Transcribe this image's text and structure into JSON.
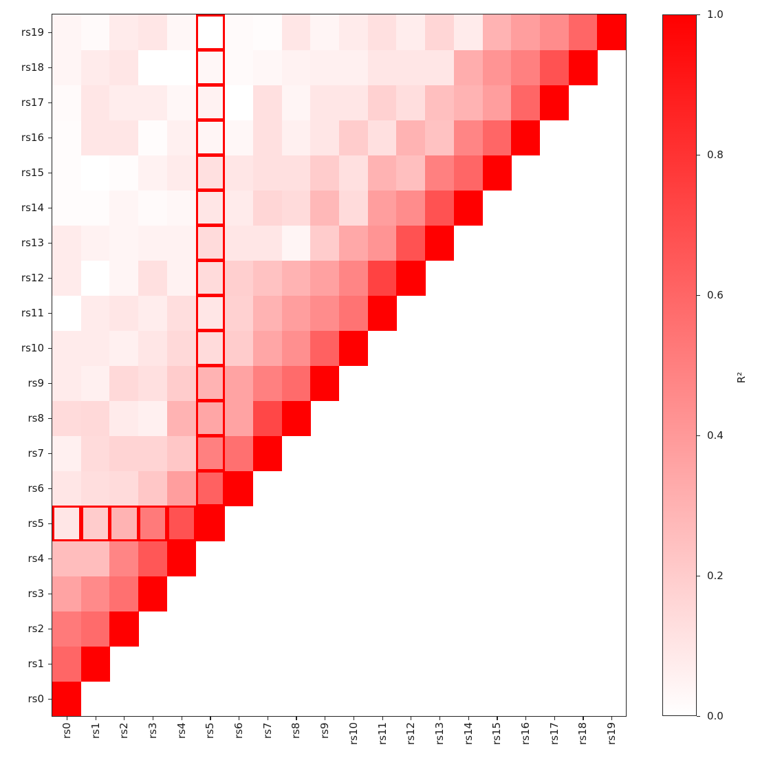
{
  "chart_data": {
    "type": "heatmap",
    "title": "",
    "xlabel": "",
    "ylabel": "",
    "x_categories": [
      "rs0",
      "rs1",
      "rs2",
      "rs3",
      "rs4",
      "rs5",
      "rs6",
      "rs7",
      "rs8",
      "rs9",
      "rs10",
      "rs11",
      "rs12",
      "rs13",
      "rs14",
      "rs15",
      "rs16",
      "rs17",
      "rs18",
      "rs19"
    ],
    "y_categories_bottom_to_top": [
      "rs0",
      "rs1",
      "rs2",
      "rs3",
      "rs4",
      "rs5",
      "rs6",
      "rs7",
      "rs8",
      "rs9",
      "rs10",
      "rs11",
      "rs12",
      "rs13",
      "rs14",
      "rs15",
      "rs16",
      "rs17",
      "rs18",
      "rs19"
    ],
    "matrix_lower_triangular": {
      "rs0": [
        1.0
      ],
      "rs1": [
        0.6,
        1.0
      ],
      "rs2": [
        0.52,
        0.58,
        1.0
      ],
      "rs3": [
        0.36,
        0.46,
        0.56,
        1.0
      ],
      "rs4": [
        0.26,
        0.26,
        0.48,
        0.66,
        1.0
      ],
      "rs5": [
        0.1,
        0.2,
        0.3,
        0.52,
        0.68,
        1.0
      ],
      "rs6": [
        0.1,
        0.13,
        0.14,
        0.22,
        0.38,
        0.62,
        1.0
      ],
      "rs7": [
        0.06,
        0.14,
        0.17,
        0.17,
        0.22,
        0.5,
        0.56,
        1.0
      ],
      "rs8": [
        0.14,
        0.15,
        0.08,
        0.06,
        0.3,
        0.35,
        0.36,
        0.72,
        1.0
      ],
      "rs9": [
        0.08,
        0.06,
        0.15,
        0.12,
        0.2,
        0.3,
        0.36,
        0.5,
        0.58,
        1.0
      ],
      "rs10": [
        0.08,
        0.08,
        0.06,
        0.1,
        0.15,
        0.14,
        0.2,
        0.35,
        0.44,
        0.62,
        1.0
      ],
      "rs11": [
        0.0,
        0.08,
        0.1,
        0.07,
        0.13,
        0.1,
        0.18,
        0.3,
        0.38,
        0.45,
        0.55,
        1.0
      ],
      "rs12": [
        0.08,
        0.0,
        0.04,
        0.12,
        0.05,
        0.14,
        0.19,
        0.24,
        0.3,
        0.37,
        0.48,
        0.74,
        1.0
      ],
      "rs13": [
        0.08,
        0.05,
        0.04,
        0.05,
        0.05,
        0.14,
        0.1,
        0.1,
        0.04,
        0.2,
        0.34,
        0.42,
        0.68,
        1.0
      ],
      "rs14": [
        0.01,
        0.01,
        0.04,
        0.02,
        0.03,
        0.1,
        0.08,
        0.16,
        0.14,
        0.28,
        0.14,
        0.38,
        0.45,
        0.68,
        1.0
      ],
      "rs15": [
        0.01,
        0.0,
        0.01,
        0.05,
        0.08,
        0.12,
        0.1,
        0.12,
        0.12,
        0.2,
        0.12,
        0.3,
        0.25,
        0.5,
        0.6,
        1.0
      ],
      "rs16": [
        0.01,
        0.1,
        0.1,
        0.01,
        0.06,
        0.04,
        0.03,
        0.12,
        0.06,
        0.1,
        0.2,
        0.12,
        0.3,
        0.24,
        0.48,
        0.6,
        1.0
      ],
      "rs17": [
        0.02,
        0.1,
        0.07,
        0.07,
        0.03,
        0.05,
        0.0,
        0.12,
        0.04,
        0.1,
        0.1,
        0.18,
        0.13,
        0.25,
        0.3,
        0.38,
        0.6,
        1.0
      ],
      "rs18": [
        0.04,
        0.08,
        0.1,
        0.0,
        0.0,
        0.03,
        0.02,
        0.03,
        0.05,
        0.06,
        0.06,
        0.1,
        0.1,
        0.1,
        0.32,
        0.42,
        0.5,
        0.68,
        1.0
      ],
      "rs19": [
        0.04,
        0.02,
        0.08,
        0.1,
        0.03,
        0.0,
        0.02,
        0.01,
        0.1,
        0.04,
        0.08,
        0.12,
        0.07,
        0.16,
        0.08,
        0.3,
        0.38,
        0.45,
        0.6,
        1.0
      ]
    },
    "highlighted_snp": "rs5",
    "highlight_color": "#ff0000",
    "colormap": {
      "low": "#ffffff",
      "high": "#ff0000"
    },
    "colorbar": {
      "label": "R²",
      "vmin": 0.0,
      "vmax": 1.0,
      "ticks": [
        "0.0",
        "0.2",
        "0.4",
        "0.6",
        "0.8",
        "1.0"
      ]
    },
    "grid": false,
    "legend_position": "right (colorbar)"
  }
}
